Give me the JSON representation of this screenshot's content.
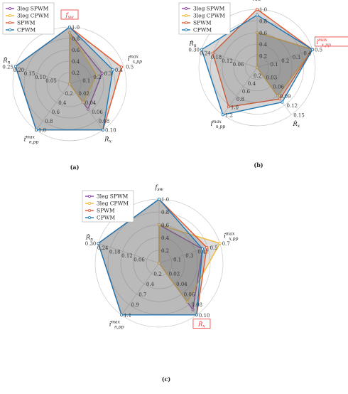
{
  "chart_data": [
    {
      "type": "radar",
      "caption": "(a)",
      "legend": [
        "3leg SPWM",
        "3leg CPWM",
        "SPWM",
        "CPWM"
      ],
      "highlight_axis": 0,
      "axes": [
        {
          "label": "f_sw",
          "ticks": [
            "0.2",
            "0.4",
            "0.6",
            "0.8",
            "1.0"
          ],
          "max": 1.0
        },
        {
          "label": "î_x,pp^max",
          "ticks": [
            "0.1",
            "0.2",
            "0.3",
            "0.4",
            "0.5"
          ],
          "max": 0.5
        },
        {
          "label": "R̂_x",
          "ticks": [
            "0.02",
            "0.04",
            "0.06",
            "0.08",
            "0.10"
          ],
          "max": 0.1
        },
        {
          "label": "î_n,pp^max",
          "ticks": [
            "0.2",
            "0.4",
            "0.6",
            "0.8",
            "1.0"
          ],
          "max": 1.0
        },
        {
          "label": "R̂_n",
          "ticks": [
            "0.05",
            "0.10",
            "0.15",
            "0.20",
            "0.25"
          ],
          "max": 0.25
        }
      ],
      "series": [
        {
          "name": "3leg SPWM",
          "color": "#8e3fa8",
          "values": [
            0.9,
            0.3,
            0.055,
            0.0,
            0.0
          ]
        },
        {
          "name": "3leg CPWM",
          "color": "#f2b632",
          "values": [
            0.9,
            0.25,
            0.04,
            0.0,
            0.0
          ]
        },
        {
          "name": "SPWM",
          "color": "#e8562a",
          "values": [
            1.0,
            0.48,
            0.1,
            1.0,
            0.25
          ]
        },
        {
          "name": "CPWM",
          "color": "#1f77b4",
          "values": [
            1.0,
            0.4,
            0.1,
            1.0,
            0.25
          ]
        }
      ]
    },
    {
      "type": "radar",
      "caption": "(b)",
      "legend": [
        "3leg SPWM",
        "3leg CPWM",
        "SPWM",
        "CPWM"
      ],
      "highlight_axis": 1,
      "axes": [
        {
          "label": "f_sw",
          "ticks": [
            "0.2",
            "0.4",
            "0.6",
            "0.8",
            "1.0"
          ],
          "max": 1.0
        },
        {
          "label": "î_x,pp^max",
          "ticks": [
            "0.1",
            "0.2",
            "0.3",
            "0.4",
            "0.5"
          ],
          "max": 0.5
        },
        {
          "label": "R̂_x",
          "ticks": [
            "0.03",
            "0.06",
            "0.09",
            "0.12",
            "0.15"
          ],
          "max": 0.15
        },
        {
          "label": "î_n,pp^max",
          "ticks": [
            "0.2",
            "0.4",
            "0.6",
            "0.8",
            "1.0",
            "1.2"
          ],
          "max": 1.2
        },
        {
          "label": "R̂_n",
          "ticks": [
            "0.06",
            "0.12",
            "0.18",
            "0.24",
            "0.30"
          ],
          "max": 0.3
        }
      ],
      "series": [
        {
          "name": "3leg SPWM",
          "color": "#8e3fa8",
          "values": [
            0.6,
            0.5,
            0.09,
            0.0,
            0.0
          ]
        },
        {
          "name": "3leg CPWM",
          "color": "#f2b632",
          "values": [
            0.6,
            0.5,
            0.09,
            0.0,
            0.0
          ]
        },
        {
          "name": "SPWM",
          "color": "#e8562a",
          "values": [
            1.0,
            0.5,
            0.1,
            1.0,
            0.24
          ]
        },
        {
          "name": "CPWM",
          "color": "#1f77b4",
          "values": [
            0.9,
            0.5,
            0.11,
            1.2,
            0.3
          ]
        }
      ]
    },
    {
      "type": "radar",
      "caption": "(c)",
      "legend": [
        "3leg SPWM",
        "3leg CPWM",
        "SPWM",
        "CPWM"
      ],
      "highlight_axis": 2,
      "axes": [
        {
          "label": "f_sw",
          "ticks": [
            "0.2",
            "0.4",
            "0.6",
            "0.8",
            "1.0"
          ],
          "max": 1.0
        },
        {
          "label": "î_x,pp^max",
          "ticks": [
            "0.1",
            "0.3",
            "0.47",
            "0.5",
            "0.7"
          ],
          "max": 0.7
        },
        {
          "label": "R̂_x",
          "ticks": [
            "0.02",
            "0.04",
            "0.06",
            "0.08",
            "0.10"
          ],
          "max": 0.1
        },
        {
          "label": "î_n,pp^max",
          "ticks": [
            "0.2",
            "0.4",
            "0.7",
            "0.9",
            "1.1"
          ],
          "max": 1.1
        },
        {
          "label": "R̂_n",
          "ticks": [
            "0.06",
            "0.12",
            "0.18",
            "0.24",
            "0.30"
          ],
          "max": 0.3
        }
      ],
      "series": [
        {
          "name": "3leg SPWM",
          "color": "#8e3fa8",
          "values": [
            0.6,
            0.5,
            0.09,
            0.0,
            0.0
          ]
        },
        {
          "name": "3leg CPWM",
          "color": "#f2b632",
          "values": [
            0.6,
            0.7,
            0.075,
            0.0,
            0.0
          ]
        },
        {
          "name": "SPWM",
          "color": "#e8562a",
          "values": [
            1.0,
            0.55,
            0.1,
            1.1,
            0.3
          ]
        },
        {
          "name": "CPWM",
          "color": "#1f77b4",
          "values": [
            1.0,
            0.5,
            0.1,
            1.1,
            0.3
          ]
        }
      ]
    }
  ]
}
